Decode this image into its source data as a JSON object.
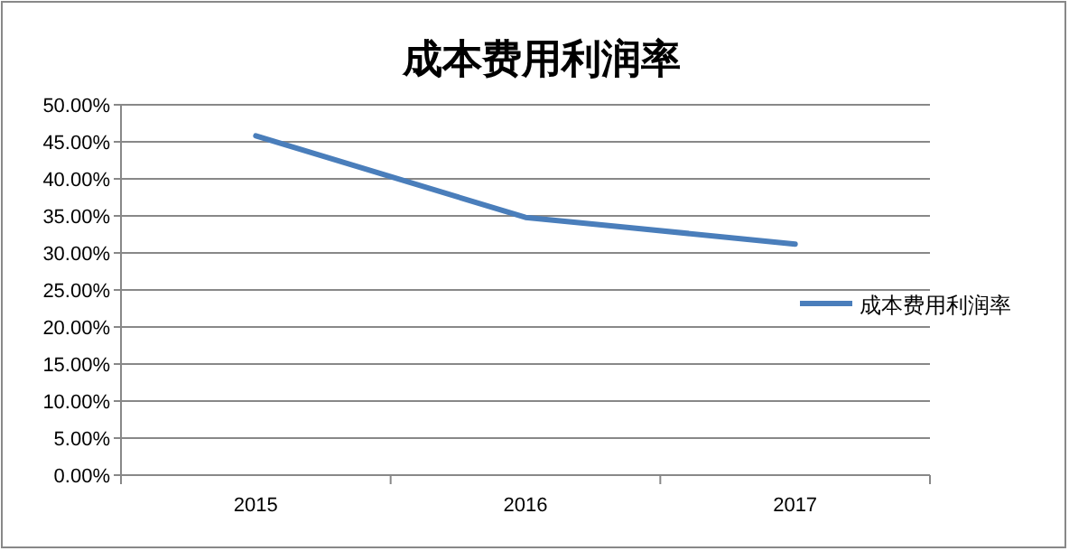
{
  "chart_data": {
    "type": "line",
    "title": "成本费用利润率",
    "categories": [
      "2015",
      "2016",
      "2017"
    ],
    "series": [
      {
        "name": "成本费用利润率",
        "color": "#4a7ebb",
        "values": [
          45.8,
          34.8,
          31.2
        ]
      }
    ],
    "ylim": [
      0,
      50
    ],
    "yticks": [
      {
        "value": 0,
        "label": "0.00%"
      },
      {
        "value": 5,
        "label": "5.00%"
      },
      {
        "value": 10,
        "label": "10.00%"
      },
      {
        "value": 15,
        "label": "15.00%"
      },
      {
        "value": 20,
        "label": "20.00%"
      },
      {
        "value": 25,
        "label": "25.00%"
      },
      {
        "value": 30,
        "label": "30.00%"
      },
      {
        "value": 35,
        "label": "35.00%"
      },
      {
        "value": 40,
        "label": "40.00%"
      },
      {
        "value": 45,
        "label": "45.00%"
      },
      {
        "value": 50,
        "label": "50.00%"
      }
    ],
    "grid": "y",
    "legend": "right",
    "marker": "none",
    "line_style": "solid"
  }
}
